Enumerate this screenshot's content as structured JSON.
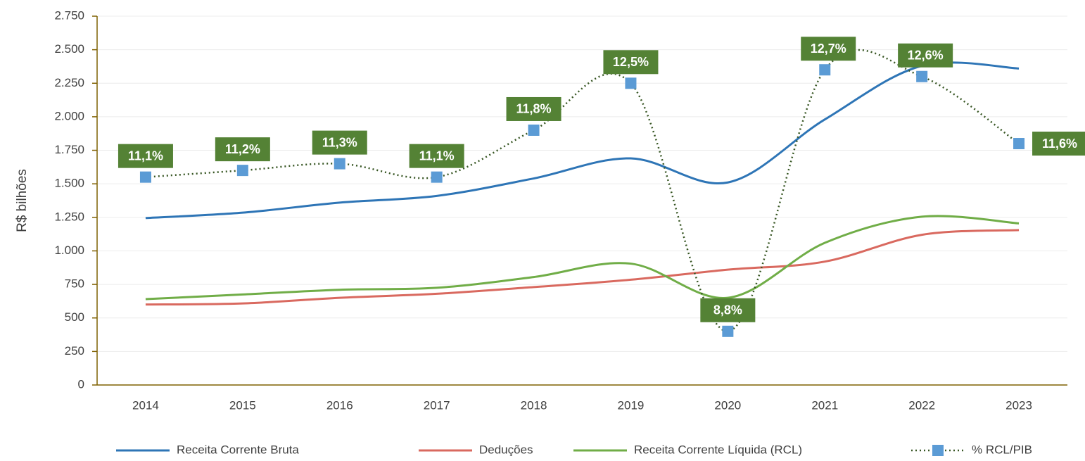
{
  "chart_data": {
    "type": "line",
    "categories": [
      "2014",
      "2015",
      "2016",
      "2017",
      "2018",
      "2019",
      "2020",
      "2021",
      "2022",
      "2023"
    ],
    "y_label": "R$ bilhões",
    "ylim": [
      0,
      2750
    ],
    "yticks": [
      0,
      250,
      500,
      750,
      {
        "value": 1000,
        "label": "1.000"
      },
      {
        "value": 1250,
        "label": "1.250"
      },
      {
        "value": 1500,
        "label": "1.500"
      },
      {
        "value": 1750,
        "label": "1.750"
      },
      {
        "value": 2000,
        "label": "2.000"
      },
      {
        "value": 2250,
        "label": "2.250"
      },
      {
        "value": 2500,
        "label": "2.500"
      },
      {
        "value": 2750,
        "label": "2.750"
      }
    ],
    "y2lim": [
      8,
      13.5
    ],
    "grid": true,
    "legend": "bottom",
    "series": [
      {
        "name": "Receita Corrente Bruta",
        "color": "#2e75b6",
        "values": [
          1245,
          1285,
          1360,
          1410,
          1540,
          1690,
          1510,
          1980,
          2380,
          2360
        ]
      },
      {
        "name": "Deduções",
        "color": "#d9695f",
        "values": [
          600,
          608,
          650,
          680,
          730,
          785,
          860,
          920,
          1120,
          1155
        ]
      },
      {
        "name": "Receita Corrente Líquida (RCL)",
        "color": "#70ad47",
        "values": [
          640,
          675,
          710,
          725,
          805,
          905,
          650,
          1060,
          1255,
          1205
        ]
      },
      {
        "name": "% RCL/PIB",
        "color": "#375623",
        "marker_color": "#5b9bd5",
        "axis": "y2",
        "values": [
          11.1,
          11.2,
          11.3,
          11.1,
          11.8,
          12.5,
          8.8,
          12.7,
          12.6,
          11.6
        ],
        "value_labels": [
          "11,1%",
          "11,2%",
          "11,3%",
          "11,1%",
          "11,8%",
          "12,5%",
          "8,8%",
          "12,7%",
          "12,6%",
          "11,6%"
        ],
        "label_color": "#548235"
      }
    ]
  }
}
